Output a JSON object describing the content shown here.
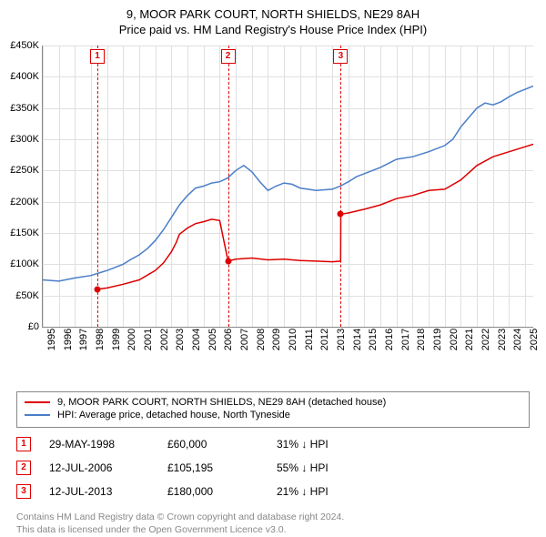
{
  "header": {
    "title": "9, MOOR PARK COURT, NORTH SHIELDS, NE29 8AH",
    "subtitle": "Price paid vs. HM Land Registry's House Price Index (HPI)"
  },
  "chart": {
    "type": "line",
    "background_color": "#ffffff",
    "grid_color": "#e0e0e0",
    "axis_color": "#888888",
    "label_fontsize": 11,
    "xlim": [
      1995,
      2025.5
    ],
    "ylim": [
      0,
      450000
    ],
    "ytick_step": 50000,
    "yticks": [
      "£0",
      "£50K",
      "£100K",
      "£150K",
      "£200K",
      "£250K",
      "£300K",
      "£350K",
      "£400K",
      "£450K"
    ],
    "xticks": [
      1995,
      1996,
      1997,
      1998,
      1999,
      2000,
      2001,
      2002,
      2003,
      2004,
      2005,
      2006,
      2007,
      2008,
      2009,
      2010,
      2011,
      2012,
      2013,
      2014,
      2015,
      2016,
      2017,
      2018,
      2019,
      2020,
      2021,
      2022,
      2023,
      2024,
      2025
    ],
    "series": [
      {
        "name": "price_paid",
        "label": "9, MOOR PARK COURT, NORTH SHIELDS, NE29 8AH (detached house)",
        "color": "#dd0000",
        "line_width": 1.5,
        "marker_color": "#dd0000",
        "points": [
          [
            1998.4,
            60000
          ],
          [
            1999.0,
            62000
          ],
          [
            2000.0,
            68000
          ],
          [
            2001.0,
            75000
          ],
          [
            2002.0,
            90000
          ],
          [
            2002.5,
            102000
          ],
          [
            2003.0,
            120000
          ],
          [
            2003.3,
            135000
          ],
          [
            2003.5,
            148000
          ],
          [
            2004.0,
            158000
          ],
          [
            2004.5,
            165000
          ],
          [
            2005.0,
            168000
          ],
          [
            2005.5,
            172000
          ],
          [
            2006.0,
            170000
          ],
          [
            2006.52,
            105195
          ],
          [
            2007.0,
            108000
          ],
          [
            2008.0,
            110000
          ],
          [
            2009.0,
            107000
          ],
          [
            2010.0,
            108000
          ],
          [
            2011.0,
            106000
          ],
          [
            2012.0,
            105000
          ],
          [
            2013.0,
            104000
          ],
          [
            2013.52,
            105000
          ],
          [
            2013.53,
            180000
          ],
          [
            2014.0,
            182000
          ],
          [
            2015.0,
            188000
          ],
          [
            2016.0,
            195000
          ],
          [
            2017.0,
            205000
          ],
          [
            2018.0,
            210000
          ],
          [
            2019.0,
            218000
          ],
          [
            2020.0,
            220000
          ],
          [
            2021.0,
            235000
          ],
          [
            2022.0,
            258000
          ],
          [
            2023.0,
            272000
          ],
          [
            2024.0,
            280000
          ],
          [
            2025.0,
            288000
          ],
          [
            2025.5,
            292000
          ]
        ]
      },
      {
        "name": "hpi",
        "label": "HPI: Average price, detached house, North Tyneside",
        "color": "#4a7ec8",
        "line_width": 1.5,
        "points": [
          [
            1995.0,
            75000
          ],
          [
            1996.0,
            73000
          ],
          [
            1997.0,
            78000
          ],
          [
            1998.0,
            82000
          ],
          [
            1998.5,
            86000
          ],
          [
            1999.0,
            90000
          ],
          [
            1999.5,
            95000
          ],
          [
            2000.0,
            100000
          ],
          [
            2000.5,
            108000
          ],
          [
            2001.0,
            115000
          ],
          [
            2001.5,
            125000
          ],
          [
            2002.0,
            138000
          ],
          [
            2002.5,
            155000
          ],
          [
            2003.0,
            175000
          ],
          [
            2003.5,
            195000
          ],
          [
            2004.0,
            210000
          ],
          [
            2004.5,
            222000
          ],
          [
            2005.0,
            225000
          ],
          [
            2005.5,
            230000
          ],
          [
            2006.0,
            232000
          ],
          [
            2006.5,
            238000
          ],
          [
            2007.0,
            250000
          ],
          [
            2007.5,
            258000
          ],
          [
            2008.0,
            248000
          ],
          [
            2008.5,
            232000
          ],
          [
            2009.0,
            218000
          ],
          [
            2009.5,
            225000
          ],
          [
            2010.0,
            230000
          ],
          [
            2010.5,
            228000
          ],
          [
            2011.0,
            222000
          ],
          [
            2012.0,
            218000
          ],
          [
            2013.0,
            220000
          ],
          [
            2013.5,
            225000
          ],
          [
            2014.0,
            232000
          ],
          [
            2014.5,
            240000
          ],
          [
            2015.0,
            245000
          ],
          [
            2016.0,
            255000
          ],
          [
            2017.0,
            268000
          ],
          [
            2018.0,
            272000
          ],
          [
            2019.0,
            280000
          ],
          [
            2020.0,
            290000
          ],
          [
            2020.5,
            300000
          ],
          [
            2021.0,
            320000
          ],
          [
            2021.5,
            335000
          ],
          [
            2022.0,
            350000
          ],
          [
            2022.5,
            358000
          ],
          [
            2023.0,
            355000
          ],
          [
            2023.5,
            360000
          ],
          [
            2024.0,
            368000
          ],
          [
            2024.5,
            375000
          ],
          [
            2025.0,
            380000
          ],
          [
            2025.5,
            385000
          ]
        ]
      }
    ],
    "sale_markers": [
      {
        "n": "1",
        "x": 1998.4,
        "y": 60000
      },
      {
        "n": "2",
        "x": 2006.52,
        "y": 105195
      },
      {
        "n": "3",
        "x": 2013.53,
        "y": 180000
      }
    ],
    "vline_color": "#dd0000"
  },
  "legend": {
    "items": [
      {
        "color": "#dd0000",
        "label": "9, MOOR PARK COURT, NORTH SHIELDS, NE29 8AH (detached house)"
      },
      {
        "color": "#4a7ec8",
        "label": "HPI: Average price, detached house, North Tyneside"
      }
    ]
  },
  "sales": [
    {
      "n": "1",
      "date": "29-MAY-1998",
      "price": "£60,000",
      "delta": "31% ↓ HPI"
    },
    {
      "n": "2",
      "date": "12-JUL-2006",
      "price": "£105,195",
      "delta": "55% ↓ HPI"
    },
    {
      "n": "3",
      "date": "12-JUL-2013",
      "price": "£180,000",
      "delta": "21% ↓ HPI"
    }
  ],
  "footer": {
    "line1": "Contains HM Land Registry data © Crown copyright and database right 2024.",
    "line2": "This data is licensed under the Open Government Licence v3.0."
  }
}
